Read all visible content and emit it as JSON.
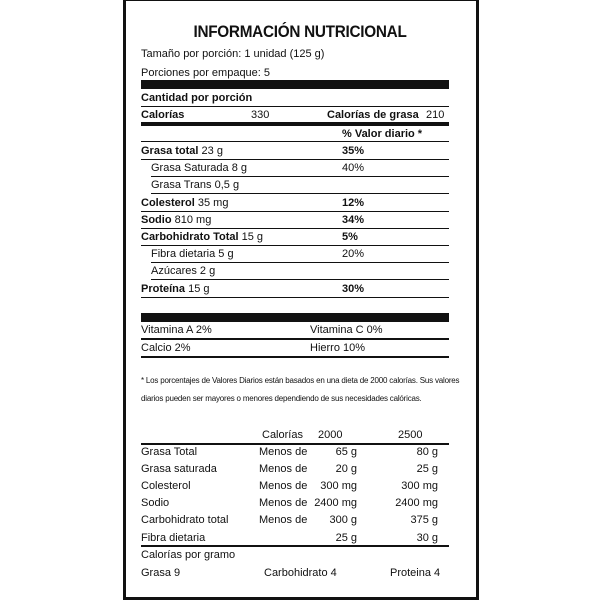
{
  "title": "INFORMACIÓN NUTRICIONAL",
  "serving_size": "Tamaño por porción: 1 unidad (125 g)",
  "servings_per_container": "Porciones por empaque: 5",
  "amount_per_serving": "Cantidad por porción",
  "calories_label": "Calorías",
  "calories_value": "330",
  "fat_calories_label": "Calorías de grasa",
  "fat_calories_value": "210",
  "daily_value_header": "% Valor diario *",
  "nutrients": [
    {
      "name": "Grasa total",
      "amount": "23 g",
      "dv": "35%",
      "bold": true
    },
    {
      "name": "Grasa Saturada",
      "amount": "8 g",
      "dv": "40%",
      "bold": false
    },
    {
      "name": "Grasa Trans",
      "amount": "0,5 g",
      "dv": "",
      "bold": false
    },
    {
      "name": "Colesterol",
      "amount": "35 mg",
      "dv": "12%",
      "bold": true
    },
    {
      "name": "Sodio",
      "amount": "810 mg",
      "dv": "34%",
      "bold": true
    },
    {
      "name": "Carbohidrato Total",
      "amount": "15 g",
      "dv": "5%",
      "bold": true
    },
    {
      "name": "Fibra dietaria",
      "amount": "5 g",
      "dv": "20%",
      "bold": false
    },
    {
      "name": "Azúcares",
      "amount": "2 g",
      "dv": "",
      "bold": false
    },
    {
      "name": "Proteína",
      "amount": "15 g",
      "dv": "30%",
      "bold": true
    }
  ],
  "vitamins": [
    [
      "Vitamina A 2%",
      "Vitamina C 0%"
    ],
    [
      "Calcio 2%",
      "Hierro 10%"
    ]
  ],
  "footnote_1": "* Los porcentajes de Valores Diarios están basados en una dieta de 2000 calorías. Sus valores",
  "footnote_2": "diarios pueden ser mayores o menores dependiendo de sus necesidades calóricas.",
  "reference_table": {
    "headers": [
      "Calorías",
      "2000",
      "2500"
    ],
    "rows": [
      [
        "Grasa Total",
        "Menos de",
        "65 g",
        "80 g"
      ],
      [
        "Grasa saturada",
        "Menos de",
        "20 g",
        "25 g"
      ],
      [
        "Colesterol",
        "Menos de",
        "300 mg",
        "300 mg"
      ],
      [
        "Sodio",
        "Menos de",
        "2400 mg",
        "2400 mg"
      ],
      [
        "Carbohidrato total",
        "Menos de",
        "300 g",
        "375 g"
      ],
      [
        "Fibra dietaria",
        "",
        "25 g",
        "30 g"
      ]
    ]
  },
  "calories_per_gram_label": "Calorías por gramo",
  "calories_per_gram": [
    "Grasa 9",
    "Carbohidrato 4",
    "Proteina 4"
  ]
}
